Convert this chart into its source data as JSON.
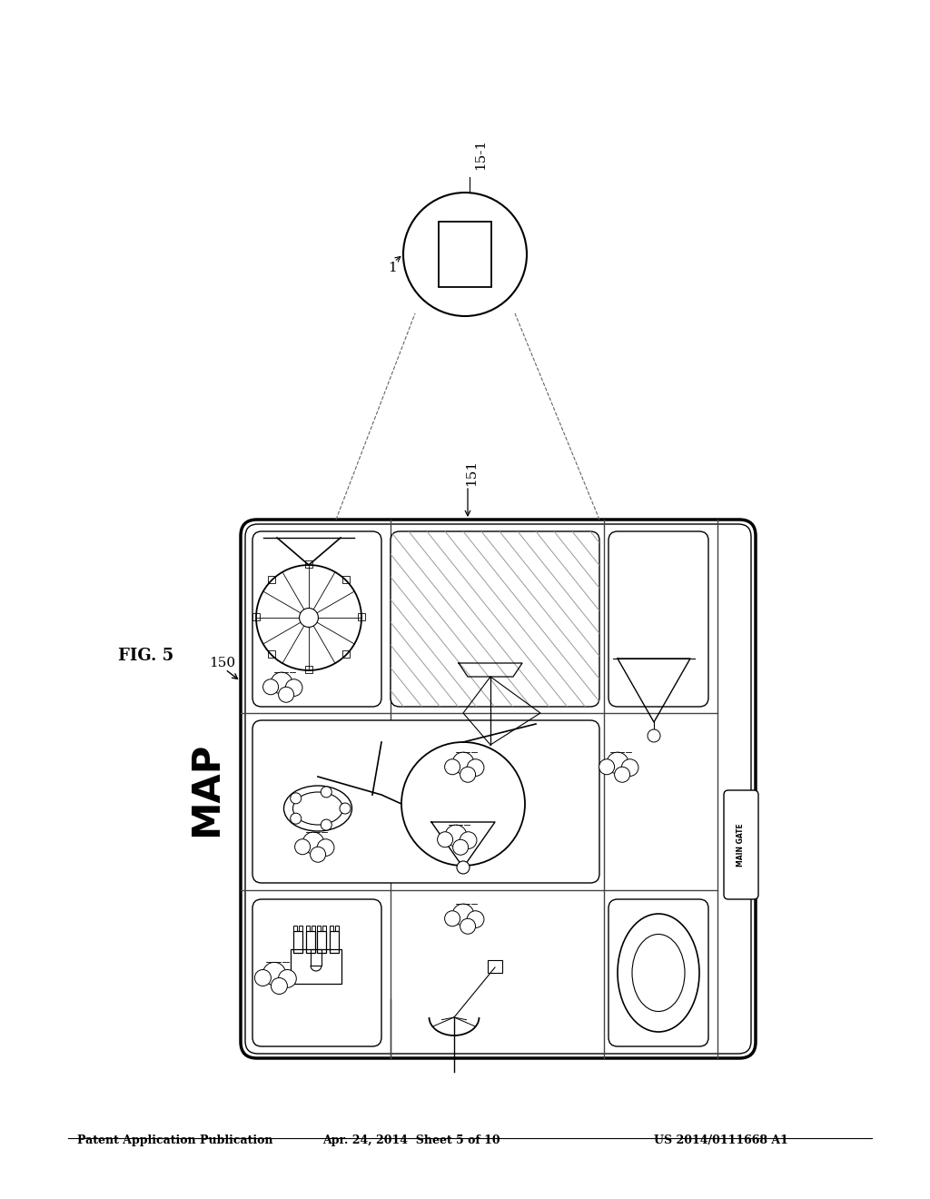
{
  "bg_color": "#ffffff",
  "header_text": "Patent Application Publication",
  "header_date": "Apr. 24, 2014  Sheet 5 of 10",
  "header_patent": "US 2014/0111668 A1",
  "fig_label": "FIG. 5",
  "label_150": "150",
  "label_151": "151",
  "label_1": "1",
  "label_15_1": "15-1",
  "map_label": "MAP"
}
